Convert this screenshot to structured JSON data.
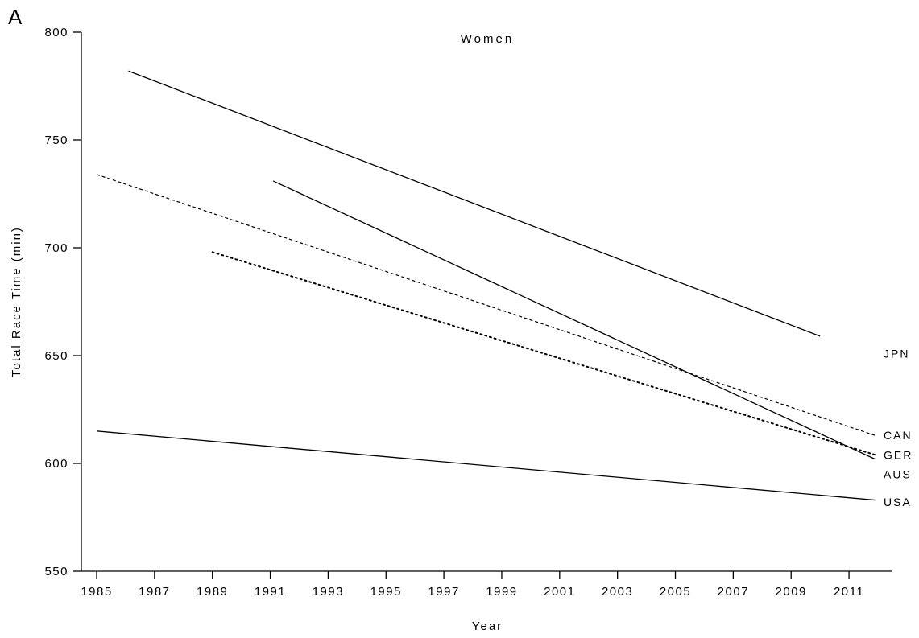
{
  "chart_data": {
    "type": "line",
    "panel_label": "A",
    "title": "Women",
    "xlabel": "Year",
    "ylabel": "Total Race Time (min)",
    "xlim": [
      1985,
      2012
    ],
    "ylim": [
      550,
      800
    ],
    "xticks": [
      1985,
      1987,
      1989,
      1991,
      1993,
      1995,
      1997,
      1999,
      2001,
      2003,
      2005,
      2007,
      2009,
      2011
    ],
    "yticks": [
      550,
      600,
      650,
      700,
      750,
      800
    ],
    "grid": false,
    "legend": "labels at right end of lines",
    "series": [
      {
        "name": "JPN",
        "style": "solid",
        "x": [
          1986.1,
          2010.0
        ],
        "y": [
          782,
          659
        ]
      },
      {
        "name": "CAN",
        "style": "dashed",
        "x": [
          1985.0,
          2011.9
        ],
        "y": [
          734,
          613
        ]
      },
      {
        "name": "GER",
        "style": "dotted",
        "x": [
          1989.0,
          2011.9
        ],
        "y": [
          698,
          604
        ]
      },
      {
        "name": "AUS",
        "style": "solid",
        "x": [
          1991.1,
          2011.9
        ],
        "y": [
          731,
          602
        ]
      },
      {
        "name": "USA",
        "style": "solid",
        "x": [
          1985.0,
          2011.9
        ],
        "y": [
          615,
          583
        ]
      }
    ],
    "series_labels": [
      {
        "text": "JPN",
        "y": 651
      },
      {
        "text": "CAN",
        "y": 613
      },
      {
        "text": "GER",
        "y": 604
      },
      {
        "text": "AUS",
        "y": 595
      },
      {
        "text": "USA",
        "y": 582
      }
    ]
  }
}
